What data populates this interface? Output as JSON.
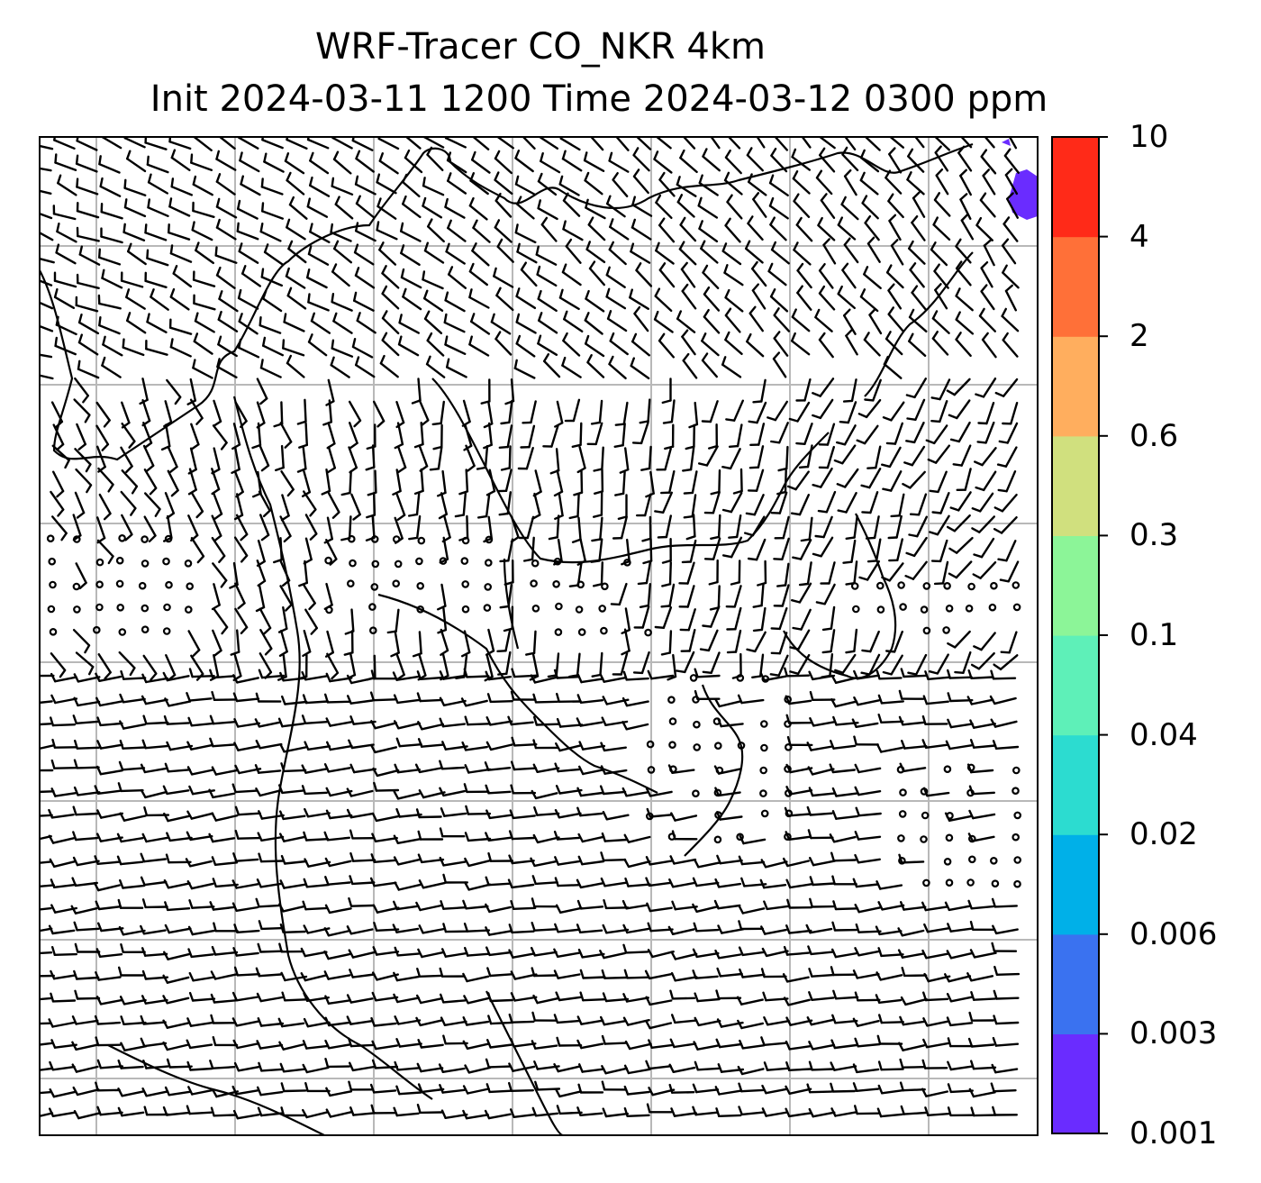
{
  "title_line1": "WRF-Tracer CO_NKR 4km",
  "title_line2": "Init 2024-03-11 1200 Time 2024-03-12 0300 ppm",
  "colorbar": {
    "levels": [
      "0.001",
      "0.003",
      "0.006",
      "0.02",
      "0.04",
      "0.1",
      "0.3",
      "0.6",
      "2",
      "4",
      "10"
    ],
    "colors": [
      "#6a2cff",
      "#3a72f0",
      "#00b0e8",
      "#2cdcd0",
      "#5ef0b8",
      "#8cf598",
      "#d0e07e",
      "#ffae5e",
      "#ff7038",
      "#ff2a18"
    ]
  },
  "map": {
    "gridline_color": "#b8b8b8",
    "barb_color": "#000000",
    "tracer_patch_color": "#6a2cff"
  }
}
